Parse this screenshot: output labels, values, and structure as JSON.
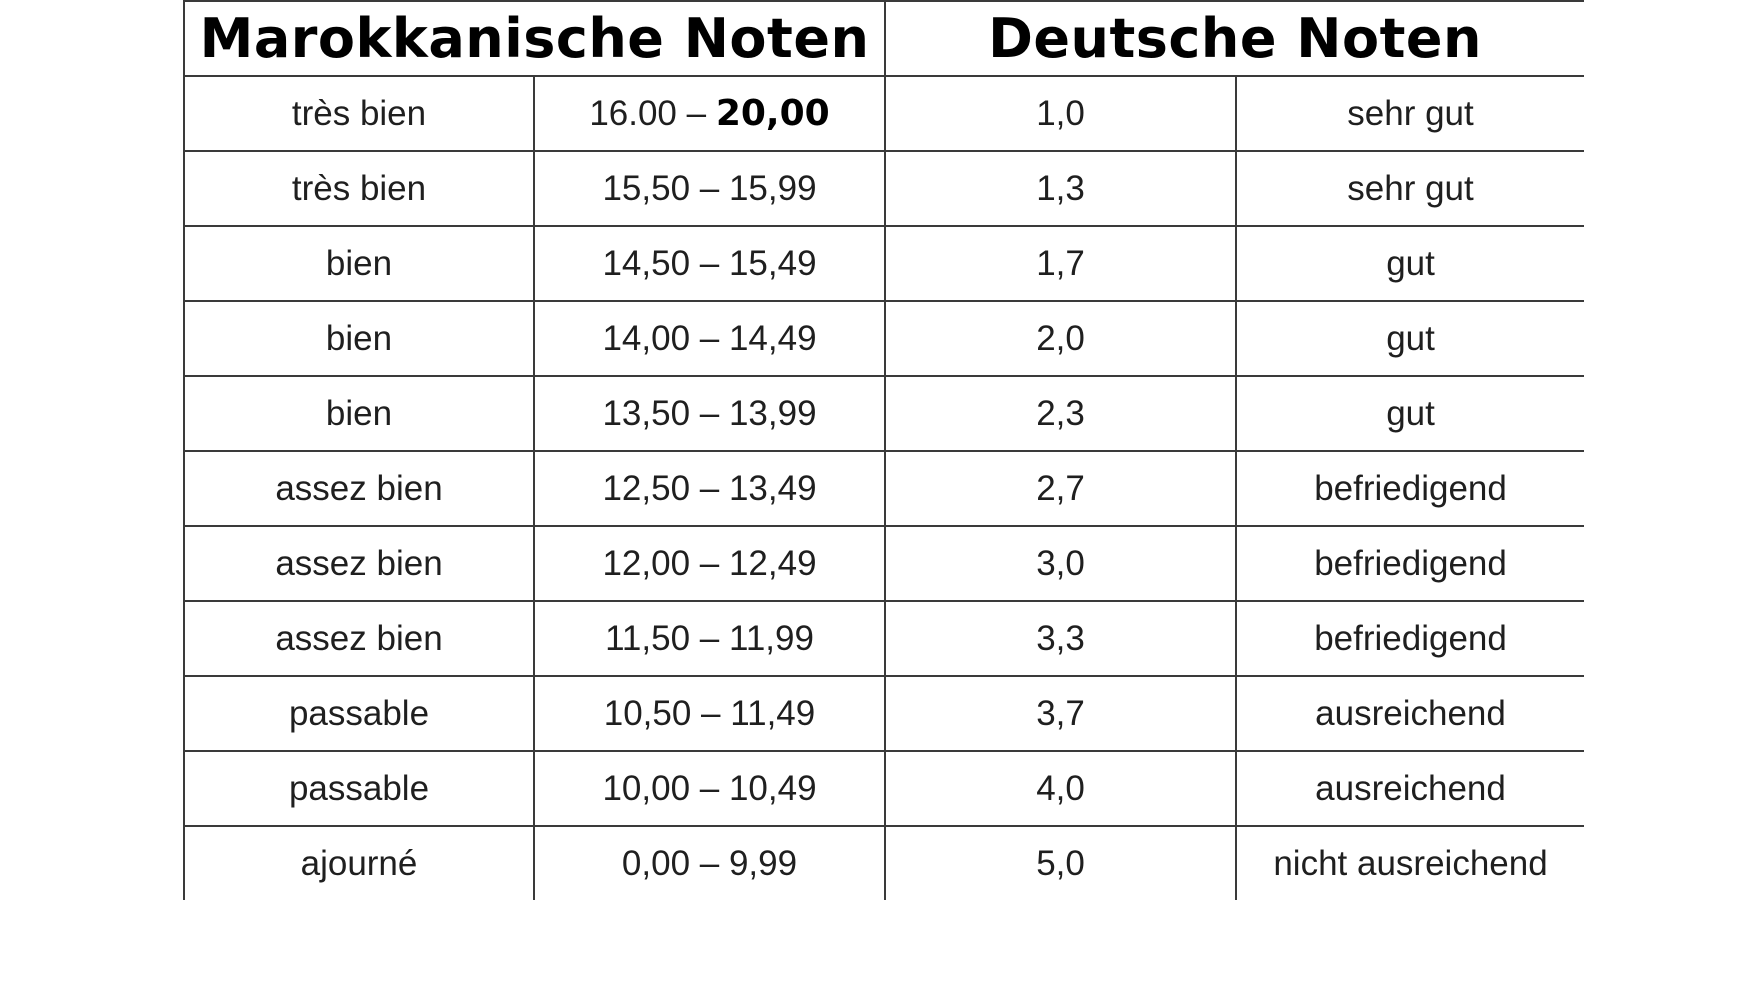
{
  "header": {
    "moroccan": "Marokkanische Noten",
    "german": "Deutsche Noten"
  },
  "rows": [
    {
      "mention": "très bien",
      "range_prefix": "16.00 – ",
      "range_suffix": "20,00",
      "grade": "1,0",
      "label": "sehr gut"
    },
    {
      "mention": "très bien",
      "range_prefix": "15,50 – 15,99",
      "range_suffix": "",
      "grade": "1,3",
      "label": "sehr gut"
    },
    {
      "mention": "bien",
      "range_prefix": "14,50 – 15,49",
      "range_suffix": "",
      "grade": "1,7",
      "label": "gut"
    },
    {
      "mention": "bien",
      "range_prefix": "14,00 – 14,49",
      "range_suffix": "",
      "grade": "2,0",
      "label": "gut"
    },
    {
      "mention": "bien",
      "range_prefix": "13,50 – 13,99",
      "range_suffix": "",
      "grade": "2,3",
      "label": "gut"
    },
    {
      "mention": "assez bien",
      "range_prefix": "12,50 – 13,49",
      "range_suffix": "",
      "grade": "2,7",
      "label": "befriedigend"
    },
    {
      "mention": "assez bien",
      "range_prefix": "12,00 – 12,49",
      "range_suffix": "",
      "grade": "3,0",
      "label": "befriedigend"
    },
    {
      "mention": "assez bien",
      "range_prefix": "11,50 – 11,99",
      "range_suffix": "",
      "grade": "3,3",
      "label": "befriedigend"
    },
    {
      "mention": "passable",
      "range_prefix": "10,50 – 11,49",
      "range_suffix": "",
      "grade": "3,7",
      "label": "ausreichend"
    },
    {
      "mention": "passable",
      "range_prefix": "10,00 – 10,49",
      "range_suffix": "",
      "grade": "4,0",
      "label": "ausreichend"
    },
    {
      "mention": "ajourné",
      "range_prefix": "0,00 – 9,99",
      "range_suffix": "",
      "grade": "5,0",
      "label": "nicht ausreichend"
    }
  ]
}
